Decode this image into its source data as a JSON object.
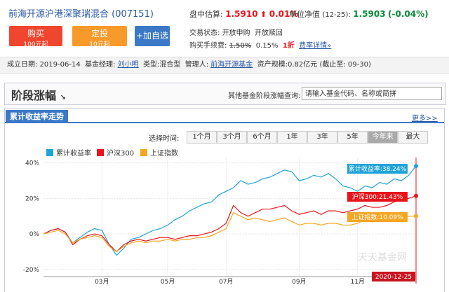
{
  "header": {
    "fund_name": "前海开源沪港深聚瑞混合",
    "fund_code": "(007151)",
    "buttons": [
      {
        "label": "购买",
        "sub": "100元起"
      },
      {
        "label": "定投",
        "sub": "10元起"
      },
      {
        "label": "+加自选"
      }
    ],
    "estimate": {
      "label": "盘中估算:",
      "value": "1.5910",
      "change": "0.01%"
    },
    "nav": {
      "label": "单位净值",
      "date": "(12-25):",
      "value": "1.5903",
      "change": "(-0.04%)"
    },
    "trade_status": {
      "label": "交易状态:",
      "items": [
        "开放申购",
        "开放赎回"
      ]
    },
    "fee": {
      "label": "购买手续费:",
      "original": "1.50%",
      "discounted": "0.15%",
      "discount": "1折",
      "link": "费率详情»"
    }
  },
  "info": [
    {
      "label": "成立日期:",
      "value": "2019-06-14"
    },
    {
      "label": "基金经理:",
      "value": "刘小明"
    },
    {
      "label": "类型:",
      "value": "混合型"
    },
    {
      "label": "管理人:",
      "value": "前海开源基金"
    },
    {
      "label": "资产规模:",
      "value": "0.82亿元 (截止至: 09-30)"
    }
  ],
  "section": {
    "title": "阶段涨幅",
    "search_label": "其他基金阶段涨幅查询:",
    "search_placeholder": "请输入基金代码、名称或简拼"
  },
  "chart_panel": {
    "tab": "累计收益率走势",
    "more": "更多>>",
    "range_label": "选择时间:",
    "ranges": [
      "1个月",
      "3个月",
      "6个月",
      "1年",
      "3年",
      "5年",
      "今年来",
      "最大"
    ],
    "active_range": "今年来",
    "watermark": "天天基金网"
  },
  "chart_data": {
    "type": "line",
    "categories": [
      null,
      null,
      null,
      null,
      null,
      null,
      null,
      null,
      "03月",
      null,
      null,
      null,
      null,
      null,
      null,
      null,
      null,
      "05月",
      null,
      null,
      null,
      null,
      null,
      null,
      null,
      "07月",
      null,
      null,
      null,
      null,
      null,
      null,
      null,
      null,
      null,
      "09月",
      null,
      null,
      null,
      null,
      null,
      null,
      null,
      "11月",
      null,
      null,
      null,
      null,
      null,
      null,
      null,
      null
    ],
    "series": [
      {
        "name": "累计收益率",
        "color": "#1fa3d8",
        "values": [
          0,
          2,
          3,
          1,
          -5,
          -2,
          1,
          3,
          2,
          -6,
          -12,
          -8,
          -3,
          -2,
          0,
          2,
          3,
          5,
          8,
          10,
          13,
          15,
          17,
          18,
          22,
          24,
          26,
          30,
          28,
          29,
          31,
          32,
          34,
          36,
          35,
          30,
          31,
          33,
          32,
          34,
          31,
          27,
          26,
          24,
          27,
          26,
          29,
          28,
          31,
          30,
          33,
          38.24
        ]
      },
      {
        "name": "沪深300",
        "color": "#e8141b",
        "values": [
          0,
          2,
          3,
          1,
          -6,
          -3,
          -1,
          0,
          -1,
          -6,
          -10,
          -6,
          -4,
          -3,
          -4,
          -3,
          -2,
          -2,
          -3,
          -2,
          -1,
          -1,
          0,
          1,
          3,
          6,
          16,
          12,
          10,
          12,
          14,
          14,
          15,
          16,
          13,
          11,
          12,
          13,
          11,
          13,
          13,
          12,
          13,
          14,
          16,
          15,
          15,
          16,
          18,
          19,
          20,
          21.43
        ]
      },
      {
        "name": "上证指数",
        "color": "#f5a623",
        "values": [
          0,
          1,
          2,
          0,
          -5,
          -3,
          -2,
          -1,
          -2,
          -7,
          -10,
          -7,
          -5,
          -4,
          -5,
          -4,
          -4,
          -3,
          -4,
          -3,
          -3,
          -2,
          -2,
          -1,
          1,
          3,
          12,
          10,
          8,
          9,
          8,
          7,
          8,
          9,
          7,
          5,
          6,
          6,
          5,
          6,
          6,
          5,
          5,
          6,
          8,
          7,
          7,
          8,
          9,
          9,
          10,
          10.09
        ]
      }
    ],
    "ylim": [
      -24,
      43
    ],
    "yticks": [
      {
        "value": 40,
        "label": "40%"
      },
      {
        "value": 20,
        "label": "20%"
      },
      {
        "value": 0,
        "label": "0%"
      },
      {
        "value": -20,
        "label": "-20%"
      }
    ],
    "grid": true,
    "tooltip": {
      "date": "2020-12-25",
      "labels": [
        "累计收益率:38.24%",
        "沪深300:21.43%",
        "上证指数:10.09%"
      ]
    }
  }
}
